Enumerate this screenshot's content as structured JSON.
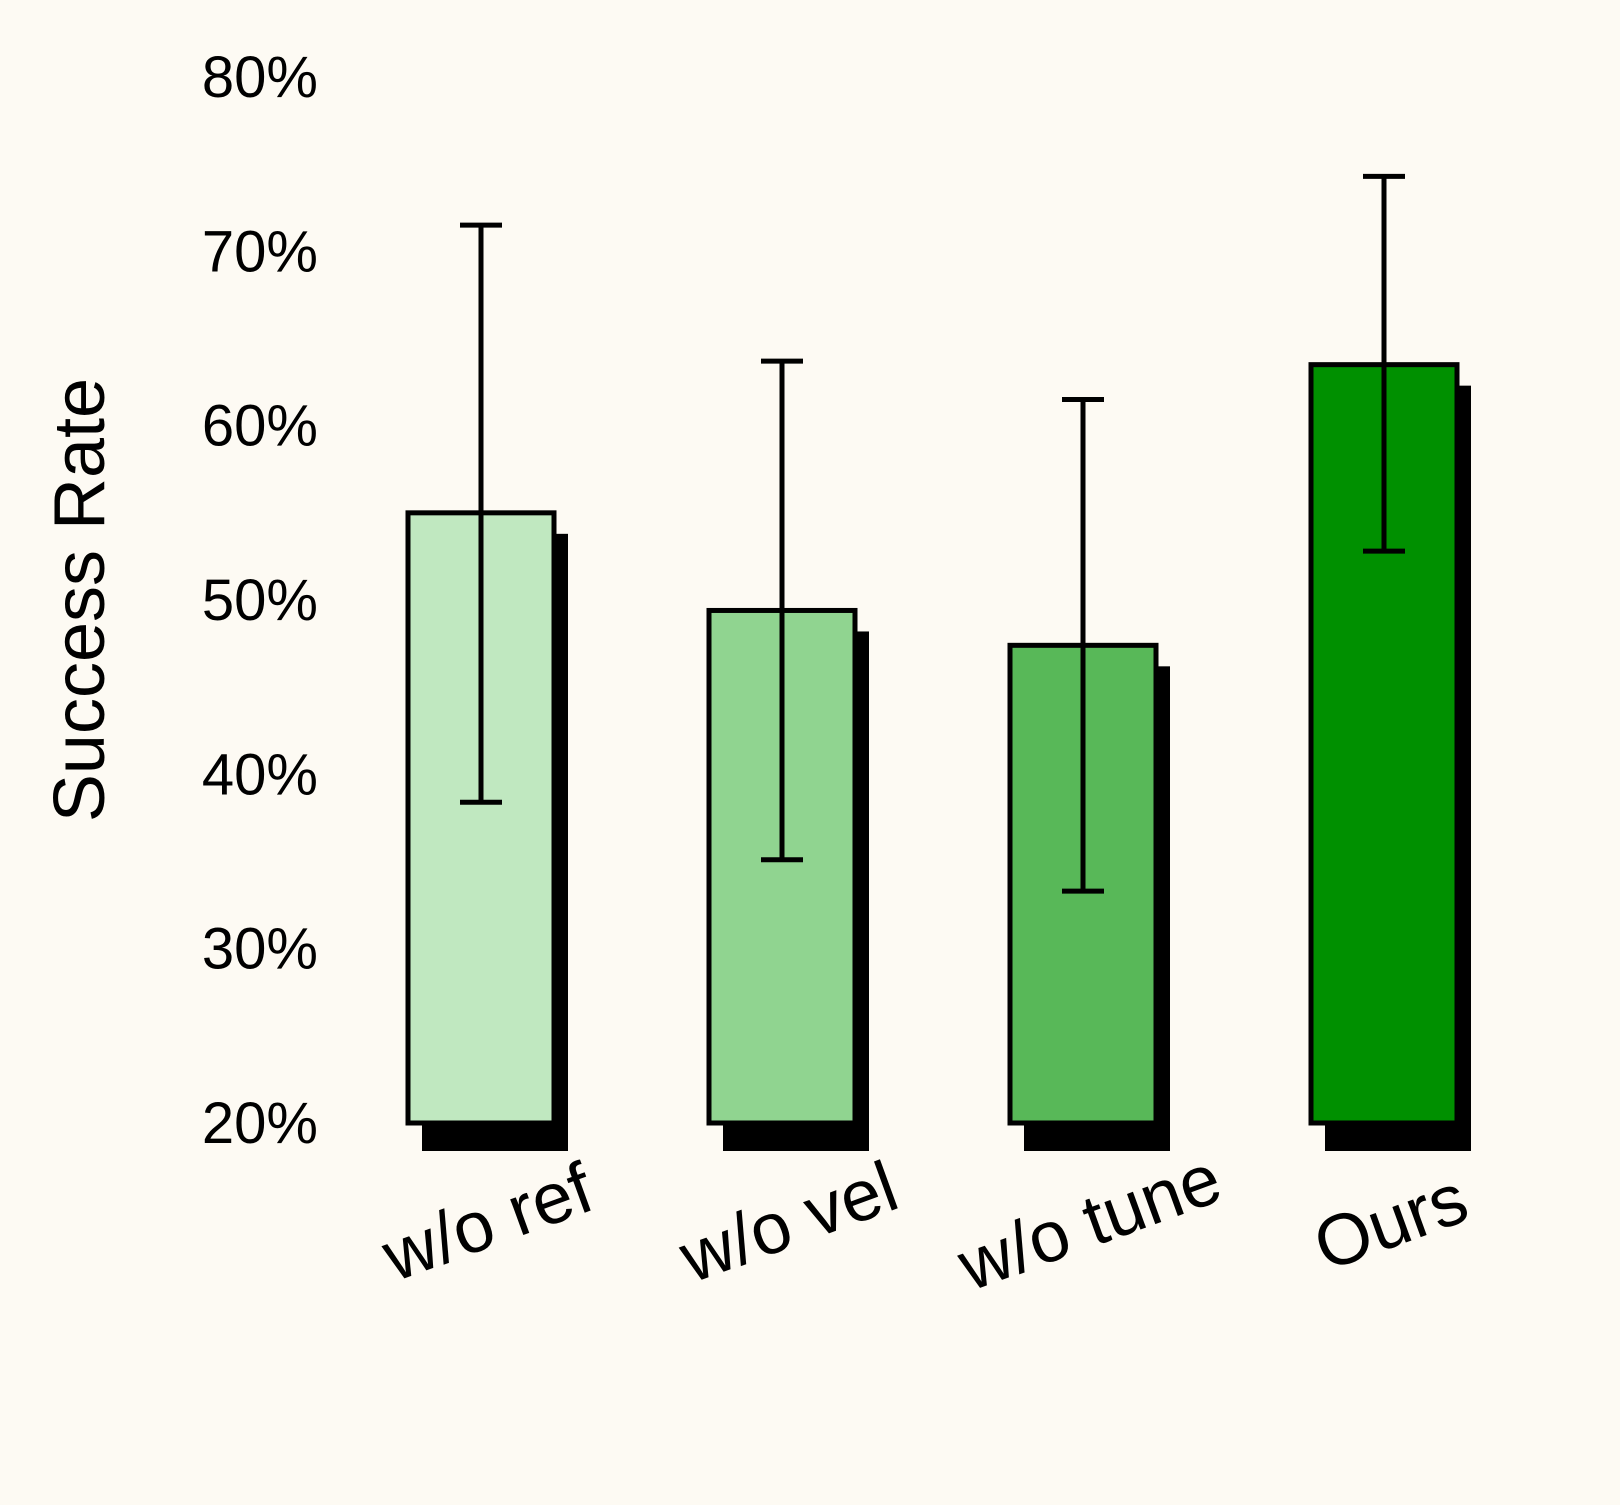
{
  "chart_data": {
    "type": "bar",
    "title": "",
    "xlabel": "",
    "ylabel": "Success Rate",
    "ylim": [
      20,
      80
    ],
    "yticks": [
      20,
      30,
      40,
      50,
      60,
      70,
      80
    ],
    "ytick_labels": [
      "20%",
      "30%",
      "40%",
      "50%",
      "60%",
      "70%",
      "80%"
    ],
    "categories": [
      "w/o ref",
      "w/o vel",
      "w/o tune",
      "Ours"
    ],
    "values": [
      55.0,
      49.4,
      47.4,
      63.5
    ],
    "error_low": [
      38.4,
      35.1,
      33.3,
      52.8
    ],
    "error_high": [
      71.5,
      63.7,
      61.5,
      74.3
    ],
    "colors": [
      "#c0e8c0",
      "#90d490",
      "#58b858",
      "#009000"
    ],
    "grid": false,
    "legend": "none"
  }
}
